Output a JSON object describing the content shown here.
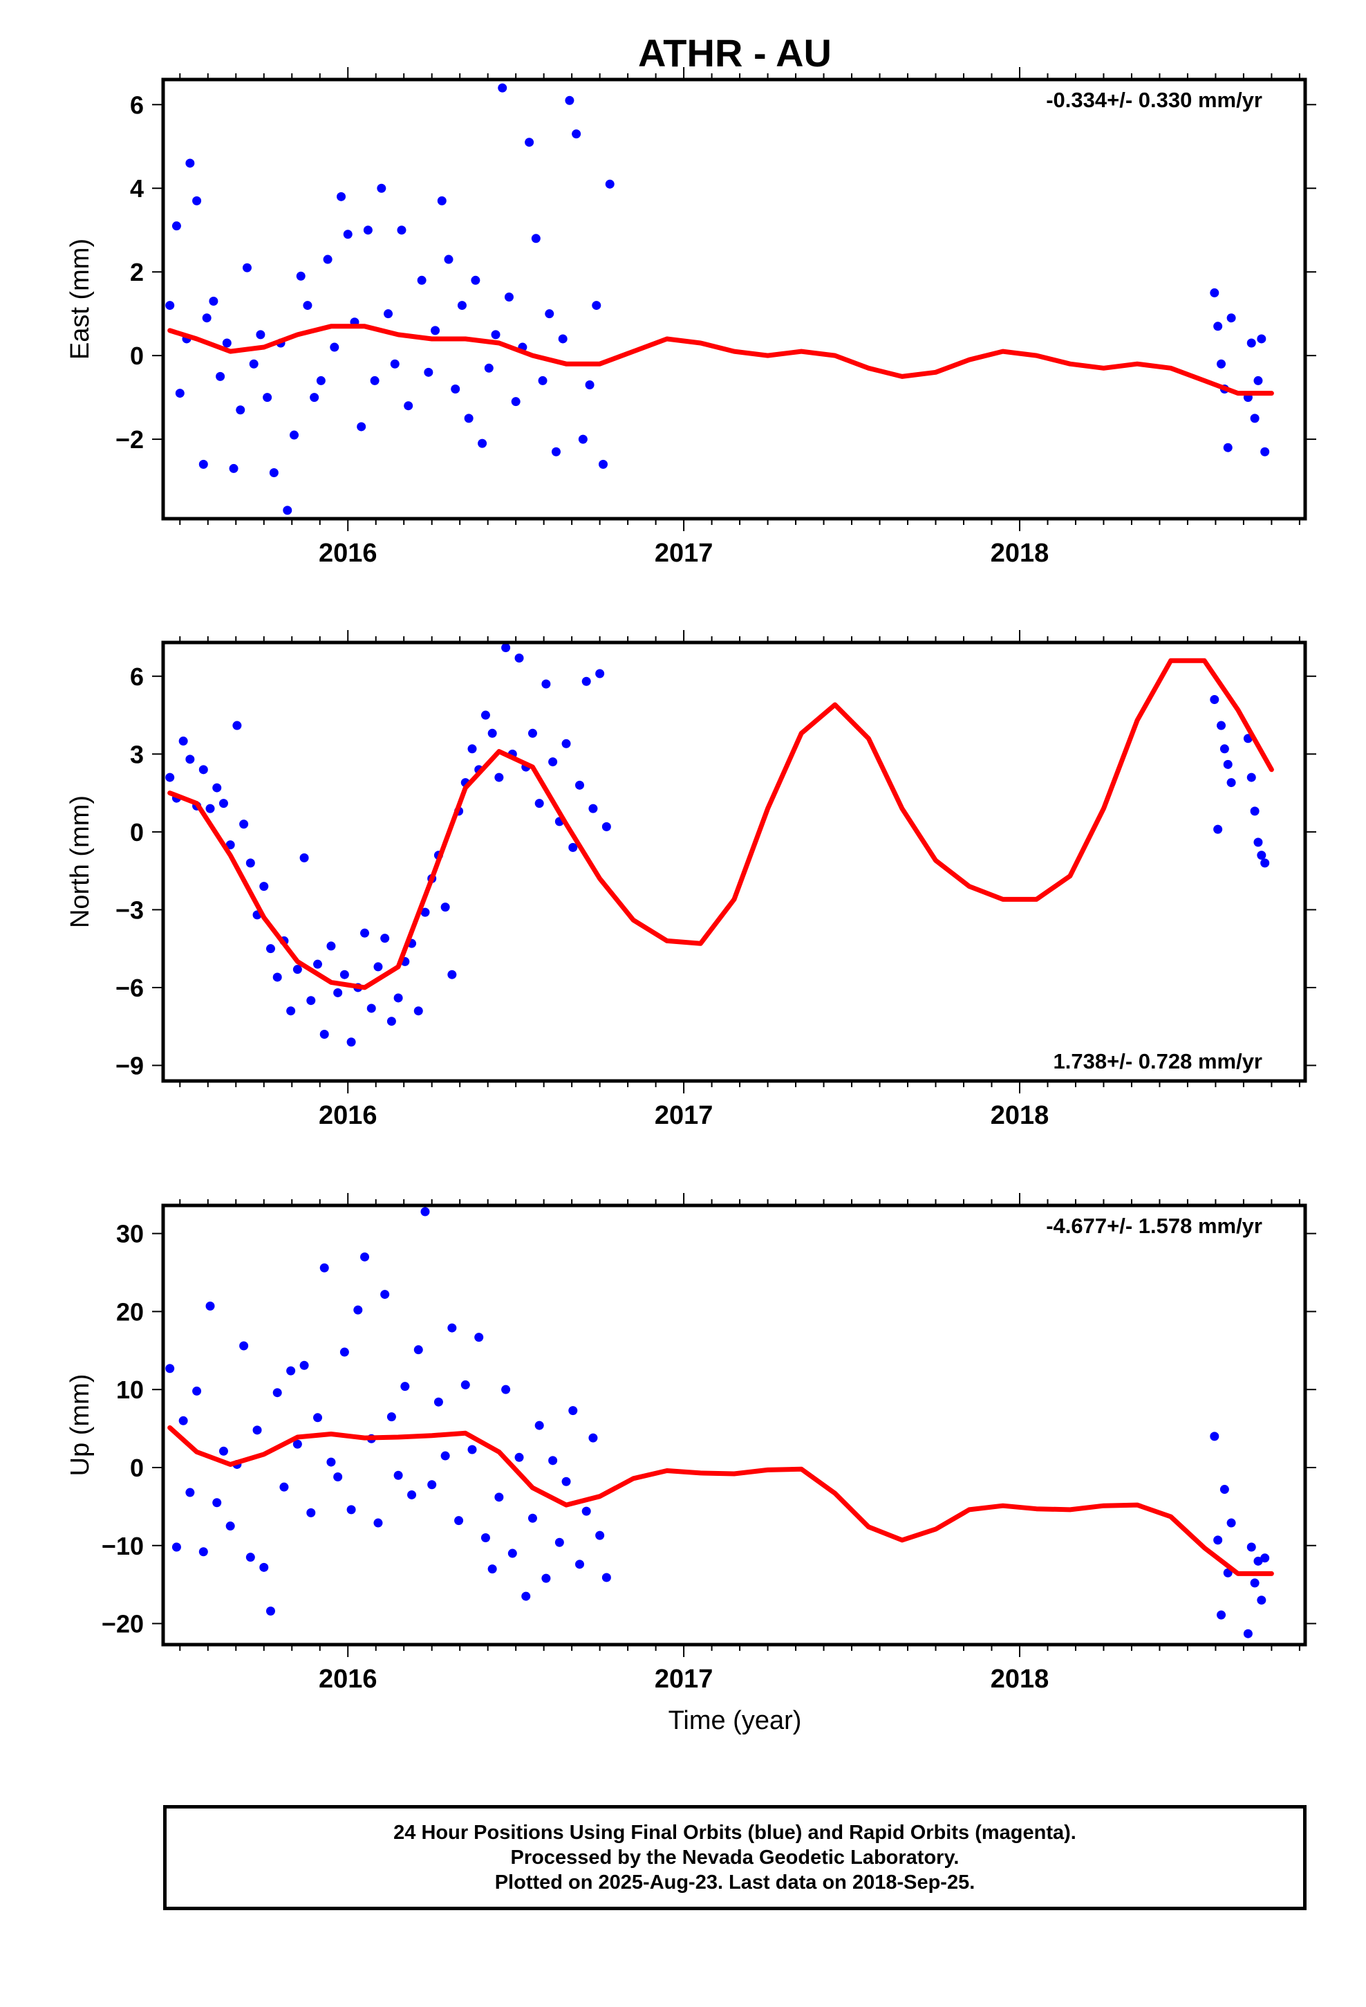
{
  "title": "ATHR - AU",
  "xlabel": "Time (year)",
  "caption": {
    "line1": "24 Hour Positions Using Final Orbits (blue) and Rapid Orbits (magenta).",
    "line2": "Processed by the Nevada Geodetic Laboratory.",
    "line3": "Plotted on 2025-Aug-23. Last data on 2018-Sep-25."
  },
  "colors": {
    "final_orbit_points": "#0000ff",
    "model_curve": "#ff0000",
    "axes": "#000000"
  },
  "chart_data": [
    {
      "type": "scatter",
      "panel": "east",
      "ylabel": "East (mm)",
      "rate_label": "-0.334+/- 0.330 mm/yr",
      "rate_label_position": "top-right",
      "xlim": [
        2015.45,
        2018.85
      ],
      "ylim": [
        -3.9,
        6.6
      ],
      "yticks": [
        -2,
        0,
        2,
        4,
        6
      ],
      "xticks": [
        2016,
        2017,
        2018
      ],
      "series": [
        {
          "kind": "points",
          "x": [
            2015.47,
            2015.49,
            2015.5,
            2015.52,
            2015.53,
            2015.55,
            2015.57,
            2015.58,
            2015.6,
            2015.62,
            2015.64,
            2015.66,
            2015.68,
            2015.7,
            2015.72,
            2015.74,
            2015.76,
            2015.78,
            2015.8,
            2015.82,
            2015.84,
            2015.86,
            2015.88,
            2015.9,
            2015.92,
            2015.94,
            2015.96,
            2015.98,
            2016.0,
            2016.02,
            2016.04,
            2016.06,
            2016.08,
            2016.1,
            2016.12,
            2016.14,
            2016.16,
            2016.18,
            2016.22,
            2016.24,
            2016.26,
            2016.28,
            2016.3,
            2016.32,
            2016.34,
            2016.36,
            2016.38,
            2016.4,
            2016.42,
            2016.44,
            2016.46,
            2016.48,
            2016.5,
            2016.52,
            2016.54,
            2016.56,
            2016.58,
            2016.6,
            2016.62,
            2016.64,
            2016.66,
            2016.68,
            2016.7,
            2016.72,
            2016.74,
            2016.76,
            2016.78,
            2018.58,
            2018.59,
            2018.6,
            2018.61,
            2018.62,
            2018.63,
            2018.68,
            2018.69,
            2018.7,
            2018.71,
            2018.72,
            2018.73
          ],
          "y": [
            1.2,
            3.1,
            -0.9,
            0.4,
            4.6,
            3.7,
            -2.6,
            0.9,
            1.3,
            -0.5,
            0.3,
            -2.7,
            -1.3,
            2.1,
            -0.2,
            0.5,
            -1.0,
            -2.8,
            0.3,
            -3.7,
            -1.9,
            1.9,
            1.2,
            -1.0,
            -0.6,
            2.3,
            0.2,
            3.8,
            2.9,
            0.8,
            -1.7,
            3.0,
            -0.6,
            4.0,
            1.0,
            -0.2,
            3.0,
            -1.2,
            1.8,
            -0.4,
            0.6,
            3.7,
            2.3,
            -0.8,
            1.2,
            -1.5,
            1.8,
            -2.1,
            -0.3,
            0.5,
            6.4,
            1.4,
            -1.1,
            0.2,
            5.1,
            2.8,
            -0.6,
            1.0,
            -2.3,
            0.4,
            6.1,
            5.3,
            -2.0,
            -0.7,
            1.2,
            -2.6,
            4.1,
            1.5,
            0.7,
            -0.2,
            -0.8,
            -2.2,
            0.9,
            -1.0,
            0.3,
            -1.5,
            -0.6,
            0.4,
            -2.3
          ],
          "color": "#0000ff"
        },
        {
          "kind": "curve",
          "x": [
            2015.47,
            2015.55,
            2015.65,
            2015.75,
            2015.85,
            2015.95,
            2016.05,
            2016.15,
            2016.25,
            2016.35,
            2016.45,
            2016.55,
            2016.65,
            2016.75,
            2016.85,
            2016.95,
            2017.05,
            2017.15,
            2017.25,
            2017.35,
            2017.45,
            2017.55,
            2017.65,
            2017.75,
            2017.85,
            2017.95,
            2018.05,
            2018.15,
            2018.25,
            2018.35,
            2018.45,
            2018.55,
            2018.65,
            2018.75
          ],
          "y": [
            0.6,
            0.4,
            0.1,
            0.2,
            0.5,
            0.7,
            0.7,
            0.5,
            0.4,
            0.4,
            0.3,
            0.0,
            -0.2,
            -0.2,
            0.1,
            0.4,
            0.3,
            0.1,
            0.0,
            0.1,
            0.0,
            -0.3,
            -0.5,
            -0.4,
            -0.1,
            0.1,
            0.0,
            -0.2,
            -0.3,
            -0.2,
            -0.3,
            -0.6,
            -0.9,
            -0.9
          ],
          "color": "#ff0000"
        }
      ]
    },
    {
      "type": "scatter",
      "panel": "north",
      "ylabel": "North (mm)",
      "rate_label": "1.738+/- 0.728 mm/yr",
      "rate_label_position": "bottom-right",
      "xlim": [
        2015.45,
        2018.85
      ],
      "ylim": [
        -9.6,
        7.3
      ],
      "yticks": [
        -9,
        -6,
        -3,
        0,
        3,
        6
      ],
      "xticks": [
        2016,
        2017,
        2018
      ],
      "series": [
        {
          "kind": "points",
          "x": [
            2015.47,
            2015.49,
            2015.51,
            2015.53,
            2015.55,
            2015.57,
            2015.59,
            2015.61,
            2015.63,
            2015.65,
            2015.67,
            2015.69,
            2015.71,
            2015.73,
            2015.75,
            2015.77,
            2015.79,
            2015.81,
            2015.83,
            2015.85,
            2015.87,
            2015.89,
            2015.91,
            2015.93,
            2015.95,
            2015.97,
            2015.99,
            2016.01,
            2016.03,
            2016.05,
            2016.07,
            2016.09,
            2016.11,
            2016.13,
            2016.15,
            2016.17,
            2016.19,
            2016.21,
            2016.23,
            2016.25,
            2016.27,
            2016.29,
            2016.31,
            2016.33,
            2016.35,
            2016.37,
            2016.39,
            2016.41,
            2016.43,
            2016.45,
            2016.47,
            2016.49,
            2016.51,
            2016.53,
            2016.55,
            2016.57,
            2016.59,
            2016.61,
            2016.63,
            2016.65,
            2016.67,
            2016.69,
            2016.71,
            2016.73,
            2016.75,
            2016.77,
            2018.58,
            2018.59,
            2018.6,
            2018.61,
            2018.62,
            2018.63,
            2018.68,
            2018.69,
            2018.7,
            2018.71,
            2018.72,
            2018.73
          ],
          "y": [
            2.1,
            1.3,
            3.5,
            2.8,
            1.0,
            2.4,
            0.9,
            1.7,
            1.1,
            -0.5,
            4.1,
            0.3,
            -1.2,
            -3.2,
            -2.1,
            -4.5,
            -5.6,
            -4.2,
            -6.9,
            -5.3,
            -1.0,
            -6.5,
            -5.1,
            -7.8,
            -4.4,
            -6.2,
            -5.5,
            -8.1,
            -6.0,
            -3.9,
            -6.8,
            -5.2,
            -4.1,
            -7.3,
            -6.4,
            -5.0,
            -4.3,
            -6.9,
            -3.1,
            -1.8,
            -0.9,
            -2.9,
            -5.5,
            0.8,
            1.9,
            3.2,
            2.4,
            4.5,
            3.8,
            2.1,
            7.1,
            3.0,
            6.7,
            2.5,
            3.8,
            1.1,
            5.7,
            2.7,
            0.4,
            3.4,
            -0.6,
            1.8,
            5.8,
            0.9,
            6.1,
            0.2,
            5.1,
            0.1,
            4.1,
            3.2,
            2.6,
            1.9,
            3.6,
            2.1,
            0.8,
            -0.4,
            -0.9,
            -1.2
          ],
          "color": "#0000ff"
        },
        {
          "kind": "curve",
          "x": [
            2015.47,
            2015.55,
            2015.65,
            2015.75,
            2015.85,
            2015.95,
            2016.05,
            2016.15,
            2016.25,
            2016.35,
            2016.45,
            2016.55,
            2016.65,
            2016.75,
            2016.85,
            2016.95,
            2017.05,
            2017.15,
            2017.25,
            2017.35,
            2017.45,
            2017.55,
            2017.65,
            2017.75,
            2017.85,
            2017.95,
            2018.05,
            2018.15,
            2018.25,
            2018.35,
            2018.45,
            2018.55,
            2018.65,
            2018.75
          ],
          "y": [
            1.5,
            1.1,
            -0.9,
            -3.3,
            -5.0,
            -5.8,
            -6.0,
            -5.2,
            -1.8,
            1.7,
            3.1,
            2.5,
            0.3,
            -1.8,
            -3.4,
            -4.2,
            -4.3,
            -2.6,
            0.9,
            3.8,
            4.9,
            3.6,
            0.9,
            -1.1,
            -2.1,
            -2.6,
            -2.6,
            -1.7,
            0.9,
            4.3,
            6.6,
            6.6,
            4.7,
            2.4
          ],
          "color": "#ff0000"
        }
      ]
    },
    {
      "type": "scatter",
      "panel": "up",
      "ylabel": "Up (mm)",
      "rate_label": "-4.677+/- 1.578 mm/yr",
      "rate_label_position": "top-right",
      "xlim": [
        2015.45,
        2018.85
      ],
      "ylim": [
        -22.7,
        33.6
      ],
      "yticks": [
        -20,
        -10,
        0,
        10,
        20,
        30
      ],
      "xticks": [
        2016,
        2017,
        2018
      ],
      "series": [
        {
          "kind": "points",
          "x": [
            2015.47,
            2015.49,
            2015.51,
            2015.53,
            2015.55,
            2015.57,
            2015.59,
            2015.61,
            2015.63,
            2015.65,
            2015.67,
            2015.69,
            2015.71,
            2015.73,
            2015.75,
            2015.77,
            2015.79,
            2015.81,
            2015.83,
            2015.85,
            2015.87,
            2015.89,
            2015.91,
            2015.93,
            2015.95,
            2015.97,
            2015.99,
            2016.01,
            2016.03,
            2016.05,
            2016.07,
            2016.09,
            2016.11,
            2016.13,
            2016.15,
            2016.17,
            2016.19,
            2016.21,
            2016.23,
            2016.25,
            2016.27,
            2016.29,
            2016.31,
            2016.33,
            2016.35,
            2016.37,
            2016.39,
            2016.41,
            2016.43,
            2016.45,
            2016.47,
            2016.49,
            2016.51,
            2016.53,
            2016.55,
            2016.57,
            2016.59,
            2016.61,
            2016.63,
            2016.65,
            2016.67,
            2016.69,
            2016.71,
            2016.73,
            2016.75,
            2016.77,
            2018.58,
            2018.59,
            2018.6,
            2018.61,
            2018.62,
            2018.63,
            2018.68,
            2018.69,
            2018.7,
            2018.71,
            2018.72,
            2018.73
          ],
          "y": [
            12.7,
            -10.2,
            6.0,
            -3.2,
            9.8,
            -10.8,
            20.7,
            -4.5,
            2.1,
            -7.5,
            0.4,
            15.6,
            -11.5,
            4.8,
            -12.8,
            -18.4,
            9.6,
            -2.5,
            12.4,
            3.0,
            13.1,
            -5.8,
            6.4,
            25.6,
            0.7,
            -1.2,
            14.8,
            -5.4,
            20.2,
            27.0,
            3.7,
            -7.1,
            22.2,
            6.5,
            -1.0,
            10.4,
            -3.5,
            15.1,
            32.8,
            -2.2,
            8.4,
            1.5,
            17.9,
            -6.8,
            10.6,
            2.3,
            16.7,
            -9.0,
            -13.0,
            -3.8,
            10.0,
            -11.0,
            1.3,
            -16.5,
            -6.5,
            5.4,
            -14.2,
            0.9,
            -9.6,
            -1.8,
            7.3,
            -12.4,
            -5.6,
            3.8,
            -8.7,
            -14.1,
            4.0,
            -9.3,
            -18.9,
            -2.8,
            -13.5,
            -7.1,
            -21.3,
            -10.2,
            -14.8,
            -12.0,
            -17.0,
            -11.6
          ],
          "color": "#0000ff"
        },
        {
          "kind": "curve",
          "x": [
            2015.47,
            2015.55,
            2015.65,
            2015.75,
            2015.85,
            2015.95,
            2016.05,
            2016.15,
            2016.25,
            2016.35,
            2016.45,
            2016.55,
            2016.65,
            2016.75,
            2016.85,
            2016.95,
            2017.05,
            2017.15,
            2017.25,
            2017.35,
            2017.45,
            2017.55,
            2017.65,
            2017.75,
            2017.85,
            2017.95,
            2018.05,
            2018.15,
            2018.25,
            2018.35,
            2018.45,
            2018.55,
            2018.65,
            2018.75
          ],
          "y": [
            5.1,
            2.0,
            0.4,
            1.7,
            3.9,
            4.3,
            3.8,
            3.9,
            4.1,
            4.4,
            2.0,
            -2.6,
            -4.8,
            -3.7,
            -1.4,
            -0.4,
            -0.7,
            -0.8,
            -0.3,
            -0.2,
            -3.3,
            -7.6,
            -9.3,
            -7.9,
            -5.4,
            -4.9,
            -5.3,
            -5.4,
            -4.9,
            -4.8,
            -6.3,
            -10.3,
            -13.6,
            -13.6
          ],
          "color": "#ff0000"
        }
      ]
    }
  ]
}
